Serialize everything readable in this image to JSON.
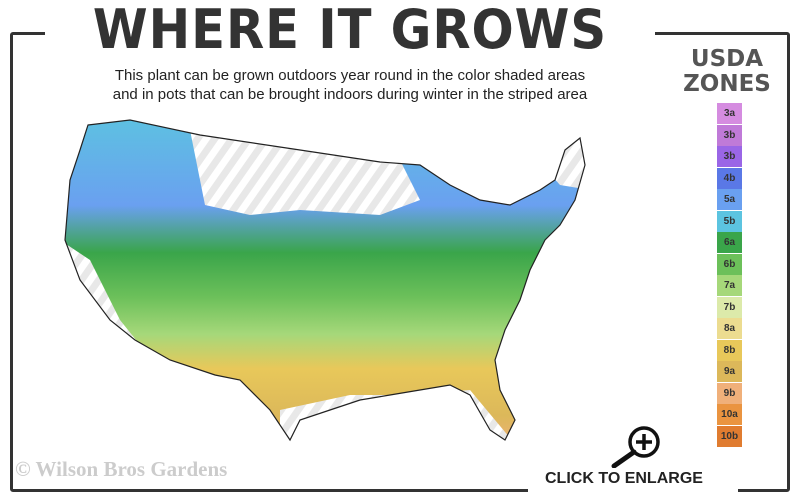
{
  "title": "WHERE IT GROWS",
  "subtitle": [
    "This plant can be grown outdoors year round in the color shaded areas",
    "and in pots that can be brought indoors during winter in the striped area"
  ],
  "legend": {
    "title_line1": "USDA",
    "title_line2": "ZONES",
    "zones": [
      {
        "label": "3a",
        "color": "#d58ce0"
      },
      {
        "label": "3b",
        "color": "#c07ad8"
      },
      {
        "label": "3b",
        "color": "#9a66e6"
      },
      {
        "label": "4b",
        "color": "#5a78e6"
      },
      {
        "label": "5a",
        "color": "#6aa0f0"
      },
      {
        "label": "5b",
        "color": "#5cc4e0"
      },
      {
        "label": "6a",
        "color": "#3aa54a"
      },
      {
        "label": "6b",
        "color": "#6cc05a"
      },
      {
        "label": "7a",
        "color": "#a6d87a"
      },
      {
        "label": "7b",
        "color": "#dceaaa"
      },
      {
        "label": "8a",
        "color": "#ecdc90"
      },
      {
        "label": "8b",
        "color": "#e8c85a"
      },
      {
        "label": "9a",
        "color": "#dcb85a"
      },
      {
        "label": "9b",
        "color": "#f0b07a"
      },
      {
        "label": "10a",
        "color": "#ea9440"
      },
      {
        "label": "10b",
        "color": "#e07c30"
      }
    ]
  },
  "watermark": "© Wilson Bros Gardens",
  "enlarge_label": "CLICK TO ENLARGE",
  "icons": {
    "enlarge": "magnifier-plus-icon"
  }
}
